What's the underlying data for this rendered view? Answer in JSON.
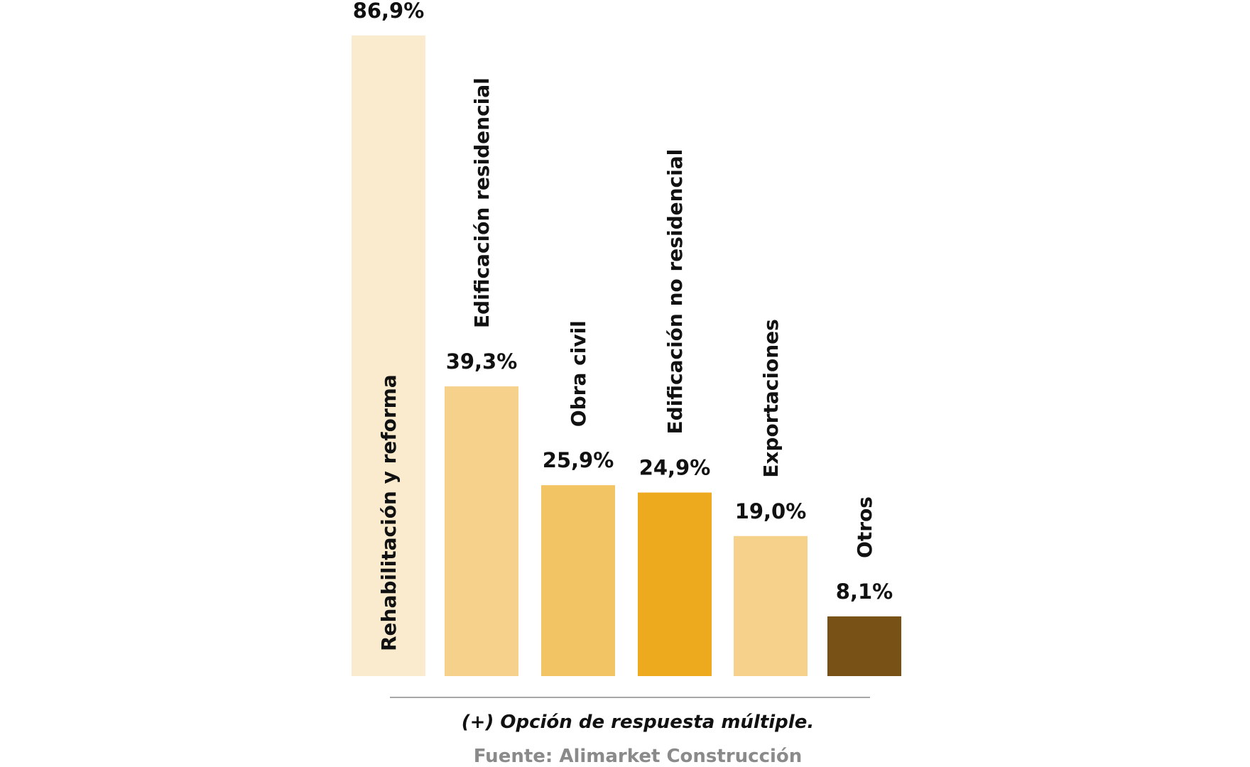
{
  "chart_data": {
    "type": "bar",
    "categories": [
      "Rehabilitación y reforma",
      "Edificación residencial",
      "Obra civil",
      "Edificación no residencial",
      "Exportaciones",
      "Otros"
    ],
    "values": [
      86.9,
      39.3,
      25.9,
      24.9,
      19.0,
      8.1
    ],
    "value_labels": [
      "86,9%",
      "39,3%",
      "25,9%",
      "24,9%",
      "19,0%",
      "8,1%"
    ],
    "colors": [
      "#FAEBCE",
      "#F6D18B",
      "#F2C463",
      "#EEAA1E",
      "#F6D18B",
      "#785117"
    ],
    "unit": "%",
    "ylim": [
      0,
      86.9
    ],
    "grid": false,
    "legend": "none"
  },
  "footnote": "(+) Opción de respuesta múltiple.",
  "source": "Fuente: Alimarket Construcción"
}
